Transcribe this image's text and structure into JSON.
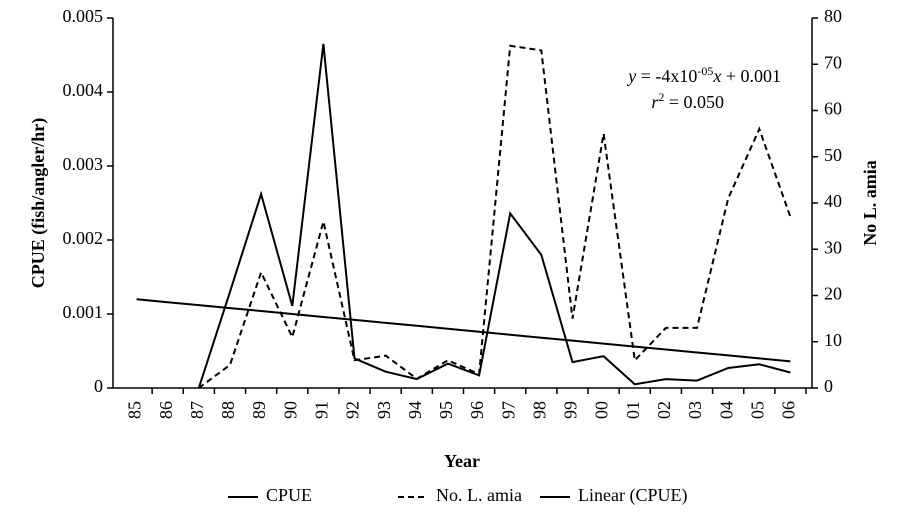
{
  "chart_data": {
    "type": "line",
    "categories": [
      "85",
      "86",
      "87",
      "88",
      "89",
      "90",
      "91",
      "92",
      "93",
      "94",
      "95",
      "96",
      "97",
      "98",
      "99",
      "00",
      "01",
      "02",
      "03",
      "04",
      "05",
      "06"
    ],
    "series": [
      {
        "name": "CPUE",
        "color": "#000000",
        "dash": "solid",
        "values": [
          null,
          null,
          0,
          0.0013,
          0.00262,
          0.00111,
          0.00465,
          0.0004,
          0.00022,
          0.00012,
          0.00033,
          0.00017,
          0.00236,
          0.0018,
          0.00035,
          0.00043,
          5e-05,
          0.00012,
          0.0001,
          0.00027,
          0.00032,
          0.00021
        ]
      },
      {
        "name": "No. L. amia",
        "color": "#000000",
        "dash": "dashed",
        "axis": "y2",
        "values": [
          null,
          null,
          0,
          5,
          25,
          11,
          36,
          6,
          7,
          2,
          6,
          3,
          74,
          73,
          15,
          55,
          6,
          13,
          13,
          41,
          56,
          37
        ]
      },
      {
        "name": "Linear (CPUE)",
        "color": "#000000",
        "dash": "solid",
        "values": [
          0.0012,
          0.00116,
          0.00112,
          0.00108,
          0.00104,
          0.001,
          0.00096,
          0.00092,
          0.00088,
          0.00084,
          0.0008,
          0.00076,
          0.00072,
          0.00068,
          0.00064,
          0.0006,
          0.00056,
          0.00052,
          0.00048,
          0.00044,
          0.0004,
          0.00036
        ]
      }
    ],
    "ylim": [
      0,
      0.005
    ],
    "yticks": [
      0,
      0.001,
      0.002,
      0.003,
      0.004,
      0.005
    ],
    "y2lim": [
      0,
      80
    ],
    "y2ticks": [
      0,
      10,
      20,
      30,
      40,
      50,
      60,
      70,
      80
    ],
    "xlabel": "Year",
    "ylabel": "CPUE (fish/angler/hr)",
    "y2label": "No L. amia",
    "annotation": [
      [
        "y",
        " = -4x10",
        "-05",
        "x",
        " + 0.001"
      ],
      [
        "r",
        "2",
        " = 0.050"
      ]
    ],
    "legend": "bottom"
  }
}
